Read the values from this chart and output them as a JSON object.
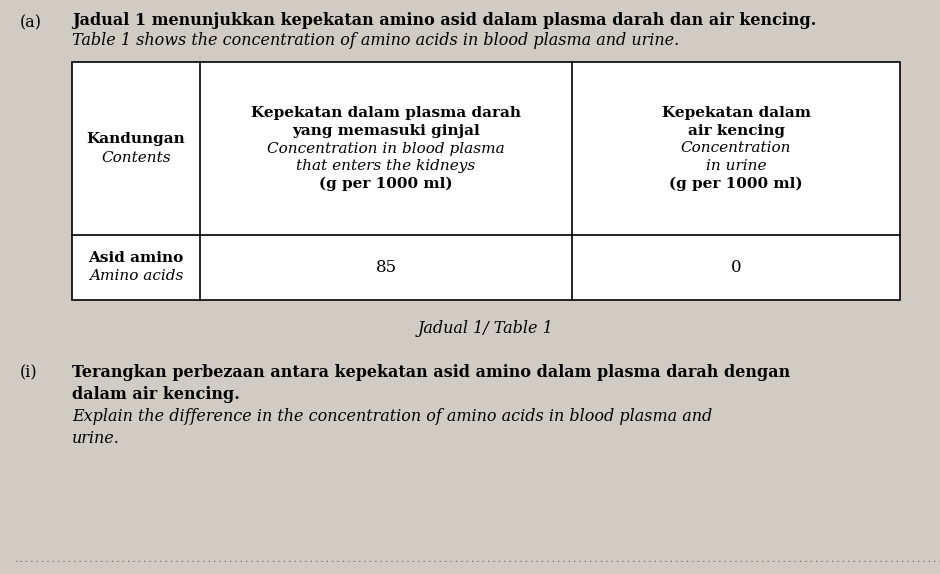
{
  "bg_color": "#d0ccc4",
  "label_a": "(a)",
  "title_line1": "Jadual 1 menunjukkan kepekatan amino asid dalam plasma darah dan air kencing.",
  "title_line2": "Table 1 shows the concentration of amino acids in blood plasma and urine.",
  "col1_header_line1": "Kandungan",
  "col1_header_line2": "Contents",
  "col2_header_line1": "Kepekatan dalam plasma darah",
  "col2_header_line2": "yang memasuki ginjal",
  "col2_header_line3": "Concentration in blood plasma",
  "col2_header_line4": "that enters the kidneys",
  "col2_header_line5": "(g per 1000 ml)",
  "col3_header_line1": "Kepekatan dalam",
  "col3_header_line2": "air kencing",
  "col3_header_line3": "Concentration",
  "col3_header_line4": "in urine",
  "col3_header_line5": "(g per 1000 ml)",
  "row1_col1_line1": "Asid amino",
  "row1_col1_line2": "Amino acids",
  "row1_col2": "85",
  "row1_col3": "0",
  "table_caption": "Jadual 1/ Table 1",
  "question_i_label": "(i)",
  "question_i_line1": "Terangkan perbezaan antara kepekatan asid amino dalam plasma darah dengan",
  "question_i_line2": "dalam air kencing.",
  "question_i_line3": "Explain the difference in the concentration of amino acids in blood plasma and",
  "question_i_line4": "urine.",
  "dotted_line": "................................................................................................................................................................................................................................................................................................"
}
